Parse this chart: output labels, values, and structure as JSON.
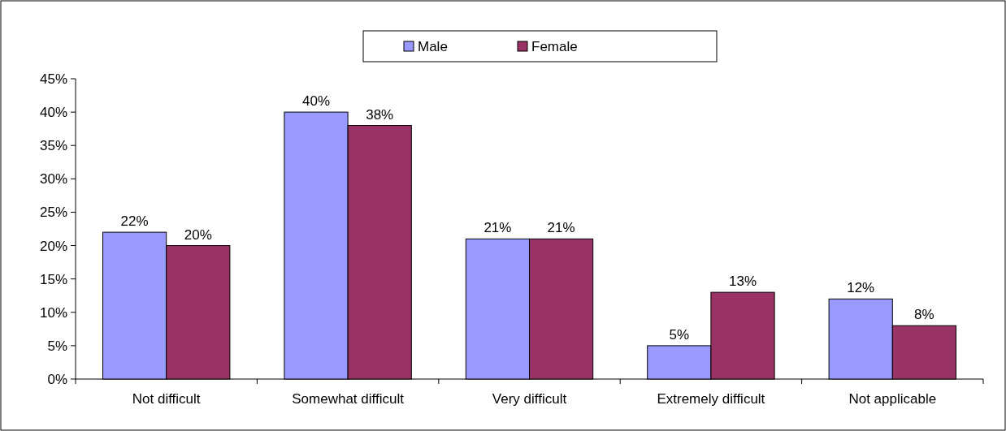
{
  "chart_data": {
    "type": "bar",
    "categories": [
      "Not difficult",
      "Somewhat difficult",
      "Very difficult",
      "Extremely difficult",
      "Not applicable"
    ],
    "series": [
      {
        "name": "Male",
        "color": "#9999ff",
        "values": [
          22,
          40,
          21,
          5,
          12
        ],
        "value_labels": [
          "22%",
          "40%",
          "21%",
          "5%",
          "12%"
        ]
      },
      {
        "name": "Female",
        "color": "#993366",
        "values": [
          20,
          38,
          21,
          13,
          8
        ],
        "value_labels": [
          "20%",
          "38%",
          "21%",
          "13%",
          "8%"
        ]
      }
    ],
    "ylim": [
      0,
      45
    ],
    "yticks": [
      {
        "value": 0,
        "label": "0%"
      },
      {
        "value": 5,
        "label": "5%"
      },
      {
        "value": 10,
        "label": "10%"
      },
      {
        "value": 15,
        "label": "15%"
      },
      {
        "value": 20,
        "label": "20%"
      },
      {
        "value": 25,
        "label": "25%"
      },
      {
        "value": 30,
        "label": "30%"
      },
      {
        "value": 35,
        "label": "35%"
      },
      {
        "value": 40,
        "label": "40%"
      },
      {
        "value": 45,
        "label": "45%"
      }
    ],
    "grid": false,
    "legend": "top"
  }
}
